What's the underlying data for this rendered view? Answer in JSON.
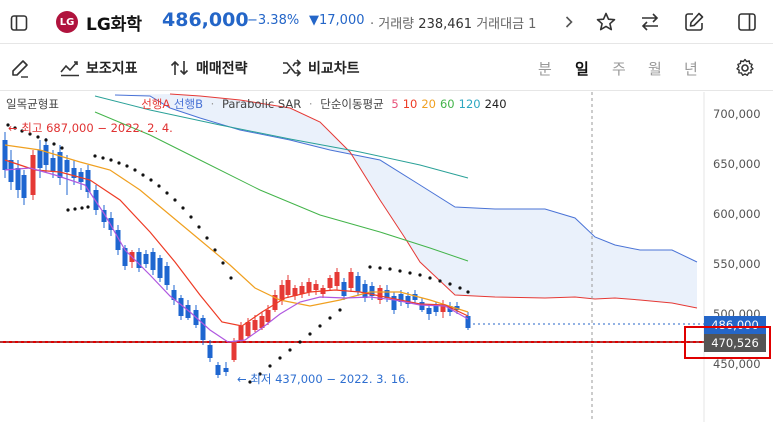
{
  "header": {
    "sidebar_icon": "panel-left-icon",
    "logo_text": "LG",
    "name": "LG화학",
    "price": "486,000",
    "change_rate": "−3.38%",
    "change_amount": "▼17,000",
    "volume_label": "· 거래량",
    "volume_value": "238,461",
    "amount_label": "거래대금 1",
    "more_icon": "chevron-right-icon",
    "actions": [
      "star-icon",
      "swap-icon",
      "edit-icon",
      "panel-right-icon"
    ]
  },
  "toolbar": {
    "draw_icon": "pencil-icon",
    "indicator_label": "보조지표",
    "strategy_label": "매매전략",
    "compare_label": "비교차트",
    "periods": [
      "분",
      "일",
      "주",
      "월",
      "년"
    ],
    "active_period": "일",
    "settings_icon": "gear-icon"
  },
  "chart": {
    "legend": {
      "ichimoku": "일목균형표",
      "span_a": "선행A",
      "span_b": "선행B",
      "sar": "Parabolic SAR",
      "ma_label": "단순이동평균",
      "ma_periods": [
        "5",
        "10",
        "20",
        "60",
        "120",
        "240"
      ],
      "ma_colors": [
        "#e8527a",
        "#ee3b25",
        "#f0a020",
        "#43b44a",
        "#2ea7c0",
        "#222222"
      ]
    },
    "high_annotation": "← 최고 687,000 − 2022. 2. 4.",
    "low_annotation": "← 최저 437,000 − 2022. 3. 16.",
    "y_ticks": [
      "700,000",
      "650,000",
      "600,000",
      "550,000",
      "500,000",
      "450,000"
    ],
    "last_price_tag": "486,000",
    "hover_price_tag": "470,526",
    "colors": {
      "up": "#e53935",
      "down": "#1e66d0",
      "cloud": "#e9f0fb"
    }
  }
}
